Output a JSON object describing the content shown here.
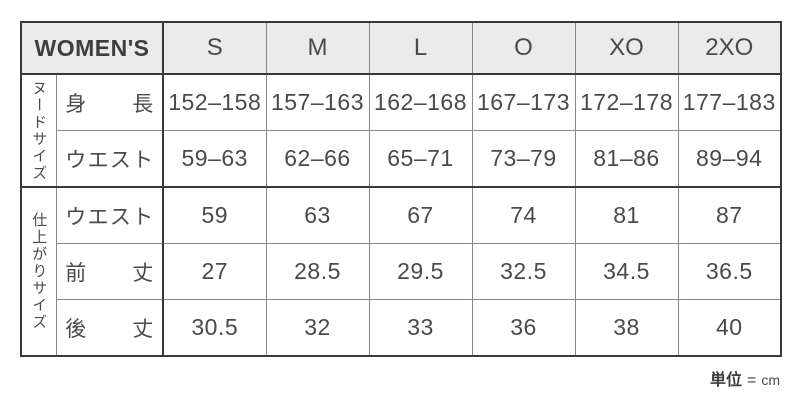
{
  "table": {
    "corner_label": "WOMEN'S",
    "size_headers": [
      "S",
      "M",
      "L",
      "O",
      "XO",
      "2XO"
    ],
    "sections": [
      {
        "group_label": "ヌードサイズ",
        "rows": [
          {
            "label": "身　長",
            "values": [
              "152–158",
              "157–163",
              "162–168",
              "167–173",
              "172–178",
              "177–183"
            ]
          },
          {
            "label": "ウエスト",
            "values": [
              "59–63",
              "62–66",
              "65–71",
              "73–79",
              "81–86",
              "89–94"
            ]
          }
        ]
      },
      {
        "group_label": "仕上がりサイズ",
        "rows": [
          {
            "label": "ウエスト",
            "values": [
              "59",
              "63",
              "67",
              "74",
              "81",
              "87"
            ]
          },
          {
            "label": "前　丈",
            "values": [
              "27",
              "28.5",
              "29.5",
              "32.5",
              "34.5",
              "36.5"
            ]
          },
          {
            "label": "後　丈",
            "values": [
              "30.5",
              "32",
              "33",
              "36",
              "38",
              "40"
            ]
          }
        ]
      }
    ]
  },
  "footer": {
    "unit_label": "単位",
    "equals": "=",
    "unit_value": "cm"
  },
  "colors": {
    "header_background": "#ebebeb",
    "border_dark": "#3b3838",
    "border_light": "#8a8785",
    "text": "#4c4948"
  }
}
